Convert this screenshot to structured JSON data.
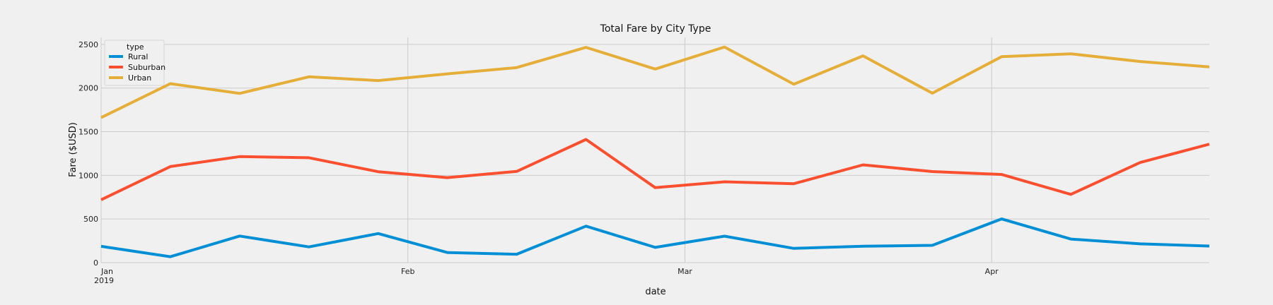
{
  "chart_data": {
    "type": "line",
    "title": "Total Fare by City Type",
    "xlabel": "date",
    "ylabel": "Fare ($USD)",
    "x": [
      "2019-01-06",
      "2019-01-13",
      "2019-01-20",
      "2019-01-27",
      "2019-02-03",
      "2019-02-10",
      "2019-02-17",
      "2019-02-24",
      "2019-03-03",
      "2019-03-10",
      "2019-03-17",
      "2019-03-24",
      "2019-03-31",
      "2019-04-07",
      "2019-04-14",
      "2019-04-21",
      "2019-04-28"
    ],
    "xlim": [
      "2019-01-06",
      "2019-04-28"
    ],
    "ylim": [
      0,
      2580
    ],
    "yticks": [
      0,
      500,
      1000,
      1500,
      2000,
      2500
    ],
    "xticks": [
      {
        "date": "2019-01-06",
        "label": "Jan",
        "sublabel": "2019"
      },
      {
        "date": "2019-02-06",
        "label": "Feb",
        "sublabel": ""
      },
      {
        "date": "2019-03-06",
        "label": "Mar",
        "sublabel": ""
      },
      {
        "date": "2019-04-06",
        "label": "Apr",
        "sublabel": ""
      }
    ],
    "grid": true,
    "legend": {
      "title": "type",
      "placement": "top-left"
    },
    "series": [
      {
        "name": "Rural",
        "color": "#008fd5",
        "values": [
          187,
          68,
          305,
          180,
          333,
          116,
          96,
          418,
          175,
          303,
          163,
          188,
          198,
          501,
          270,
          215,
          190
        ]
      },
      {
        "name": "Suburban",
        "color": "#fc4f30",
        "values": [
          721,
          1101,
          1215,
          1202,
          1042,
          974,
          1045,
          1411,
          859,
          926,
          904,
          1120,
          1043,
          1010,
          782,
          1147,
          1357
        ]
      },
      {
        "name": "Urban",
        "color": "#e5ae38",
        "values": [
          1661,
          2050,
          1939,
          2129,
          2086,
          2163,
          2235,
          2466,
          2218,
          2470,
          2044,
          2369,
          1941,
          2359,
          2392,
          2304,
          2243
        ]
      }
    ]
  }
}
